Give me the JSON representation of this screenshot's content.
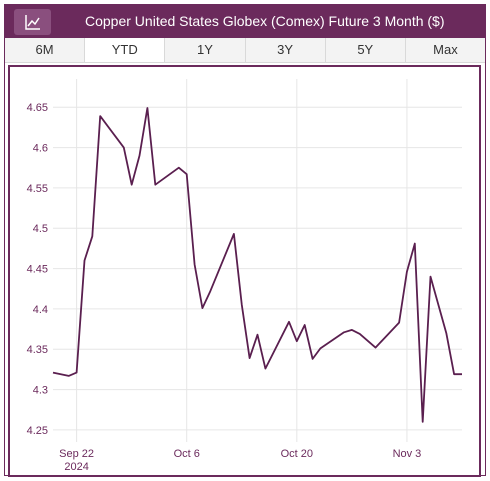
{
  "header": {
    "title": "Copper United States Globex (Comex) Future 3 Month ($)",
    "icon": "line-chart-icon"
  },
  "tabs": [
    {
      "label": "6M",
      "active": false
    },
    {
      "label": "YTD",
      "active": true
    },
    {
      "label": "1Y",
      "active": false
    },
    {
      "label": "3Y",
      "active": false
    },
    {
      "label": "5Y",
      "active": false
    },
    {
      "label": "Max",
      "active": false
    }
  ],
  "colors": {
    "accent": "#6b2a5c",
    "line": "#5a1f4f",
    "grid": "#e6e6e6",
    "tick_text": "#6b2a5c"
  },
  "chart_data": {
    "type": "line",
    "y_ticks": [
      4.25,
      4.3,
      4.35,
      4.4,
      4.45,
      4.5,
      4.55,
      4.6,
      4.65
    ],
    "ylim": [
      4.235,
      4.685
    ],
    "xlim": [
      "2024-09-19",
      "2024-11-10"
    ],
    "x_ticks": [
      {
        "date": "2024-09-22",
        "label": "Sep 22",
        "sublabel": "2024"
      },
      {
        "date": "2024-10-06",
        "label": "Oct 6",
        "sublabel": ""
      },
      {
        "date": "2024-10-20",
        "label": "Oct 20",
        "sublabel": ""
      },
      {
        "date": "2024-11-03",
        "label": "Nov 3",
        "sublabel": ""
      }
    ],
    "series": [
      {
        "points": [
          {
            "date": "2024-09-19",
            "value": 4.321
          },
          {
            "date": "2024-09-21",
            "value": 4.317
          },
          {
            "date": "2024-09-22",
            "value": 4.321
          },
          {
            "date": "2024-09-23",
            "value": 4.46
          },
          {
            "date": "2024-09-24",
            "value": 4.49
          },
          {
            "date": "2024-09-25",
            "value": 4.639
          },
          {
            "date": "2024-09-28",
            "value": 4.6
          },
          {
            "date": "2024-09-29",
            "value": 4.554
          },
          {
            "date": "2024-09-30",
            "value": 4.59
          },
          {
            "date": "2024-10-01",
            "value": 4.649
          },
          {
            "date": "2024-10-02",
            "value": 4.554
          },
          {
            "date": "2024-10-05",
            "value": 4.575
          },
          {
            "date": "2024-10-06",
            "value": 4.567
          },
          {
            "date": "2024-10-07",
            "value": 4.455
          },
          {
            "date": "2024-10-08",
            "value": 4.401
          },
          {
            "date": "2024-10-09",
            "value": 4.422
          },
          {
            "date": "2024-10-12",
            "value": 4.493
          },
          {
            "date": "2024-10-13",
            "value": 4.405
          },
          {
            "date": "2024-10-14",
            "value": 4.339
          },
          {
            "date": "2024-10-15",
            "value": 4.368
          },
          {
            "date": "2024-10-16",
            "value": 4.326
          },
          {
            "date": "2024-10-19",
            "value": 4.384
          },
          {
            "date": "2024-10-20",
            "value": 4.36
          },
          {
            "date": "2024-10-21",
            "value": 4.38
          },
          {
            "date": "2024-10-22",
            "value": 4.338
          },
          {
            "date": "2024-10-23",
            "value": 4.351
          },
          {
            "date": "2024-10-26",
            "value": 4.371
          },
          {
            "date": "2024-10-27",
            "value": 4.374
          },
          {
            "date": "2024-10-28",
            "value": 4.369
          },
          {
            "date": "2024-10-30",
            "value": 4.352
          },
          {
            "date": "2024-11-02",
            "value": 4.383
          },
          {
            "date": "2024-11-03",
            "value": 4.446
          },
          {
            "date": "2024-11-04",
            "value": 4.481
          },
          {
            "date": "2024-11-05",
            "value": 4.26
          },
          {
            "date": "2024-11-06",
            "value": 4.44
          },
          {
            "date": "2024-11-08",
            "value": 4.37
          },
          {
            "date": "2024-11-09",
            "value": 4.319
          },
          {
            "date": "2024-11-10",
            "value": 4.319
          }
        ]
      }
    ],
    "grid": true
  }
}
